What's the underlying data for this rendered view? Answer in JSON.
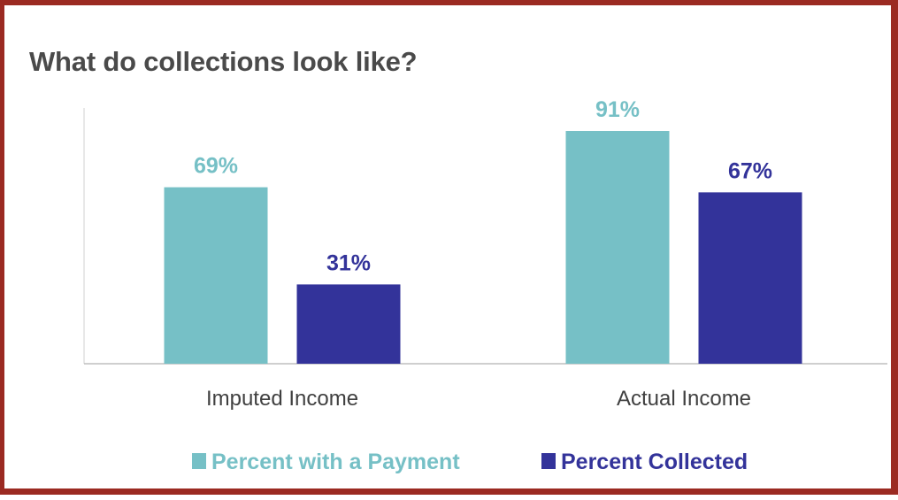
{
  "chart_data": {
    "type": "bar",
    "title": "What do collections look like?",
    "categories": [
      "Imputed Income",
      "Actual Income"
    ],
    "series": [
      {
        "name": "Percent with a Payment",
        "values": [
          69,
          91
        ],
        "labels": [
          "69%",
          "91%"
        ],
        "color": "#76c0c6"
      },
      {
        "name": "Percent Collected",
        "values": [
          31,
          67
        ],
        "labels": [
          "31%",
          "67%"
        ],
        "color": "#33339a"
      }
    ],
    "ylim": [
      0,
      100
    ],
    "grid": false,
    "legend": "bottom",
    "xlabel": "",
    "ylabel": ""
  }
}
